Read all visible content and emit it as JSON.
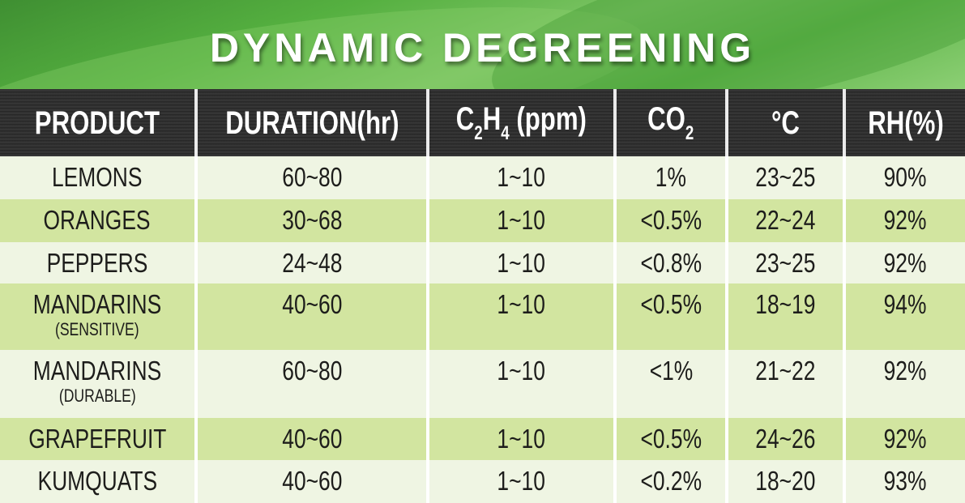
{
  "title": "DYNAMIC DEGREENING",
  "headers": {
    "product": "PRODUCT",
    "duration": "DURATION(hr)",
    "c2h4": {
      "c": "C",
      "sub1": "2",
      "h": "H",
      "sub2": "4",
      "unit": " (ppm)"
    },
    "co2": {
      "co": "CO",
      "sub": "2"
    },
    "temp": "°C",
    "rh": "RH(%)"
  },
  "rows": [
    {
      "product": "LEMONS",
      "note": "",
      "duration": "60~80",
      "c2h4": "1~10",
      "co2": "1%",
      "temp": "23~25",
      "rh": "90%"
    },
    {
      "product": "ORANGES",
      "note": "",
      "duration": "30~68",
      "c2h4": "1~10",
      "co2": "<0.5%",
      "temp": "22~24",
      "rh": "92%"
    },
    {
      "product": "PEPPERS",
      "note": "",
      "duration": "24~48",
      "c2h4": "1~10",
      "co2": "<0.8%",
      "temp": "23~25",
      "rh": "92%"
    },
    {
      "product": "MANDARINS",
      "note": "(SENSITIVE)",
      "duration": "40~60",
      "c2h4": "1~10",
      "co2": "<0.5%",
      "temp": "18~19",
      "rh": "94%"
    },
    {
      "product": "MANDARINS",
      "note": "(DURABLE)",
      "duration": "60~80",
      "c2h4": "1~10",
      "co2": "<1%",
      "temp": "21~22",
      "rh": "92%"
    },
    {
      "product": "GRAPEFRUIT",
      "note": "",
      "duration": "40~60",
      "c2h4": "1~10",
      "co2": "<0.5%",
      "temp": "24~26",
      "rh": "92%"
    },
    {
      "product": "KUMQUATS",
      "note": "",
      "duration": "40~60",
      "c2h4": "1~10",
      "co2": "<0.2%",
      "temp": "18~20",
      "rh": "93%"
    }
  ]
}
